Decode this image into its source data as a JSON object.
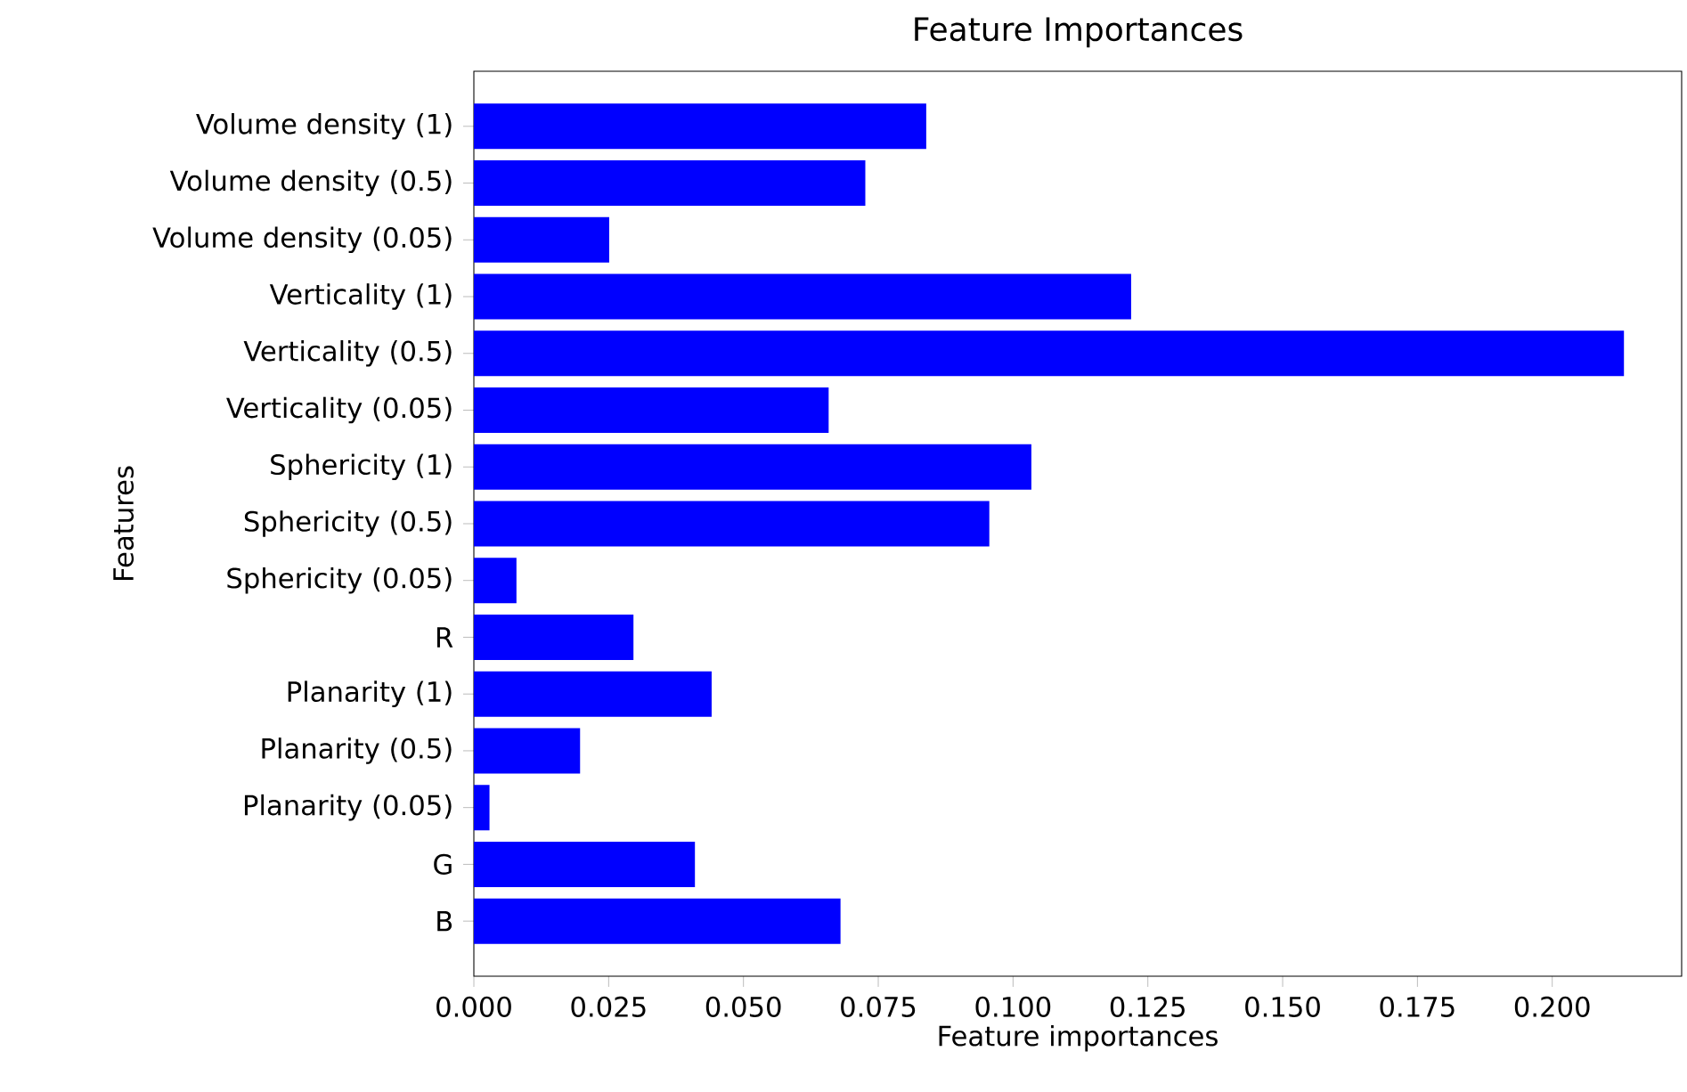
{
  "chart_data": {
    "type": "bar",
    "orientation": "horizontal",
    "title": "Feature Importances",
    "xlabel": "Feature importances",
    "ylabel": "Features",
    "categories": [
      "Volume density (1)",
      "Volume density (0.5)",
      "Volume density (0.05)",
      "Verticality (1)",
      "Verticality (0.5)",
      "Verticality (0.05)",
      "Sphericity (1)",
      "Sphericity (0.5)",
      "Sphericity (0.05)",
      "R",
      "Planarity (1)",
      "Planarity (0.5)",
      "Planarity (0.05)",
      "G",
      "B"
    ],
    "values": [
      0.0839,
      0.0726,
      0.0251,
      0.1219,
      0.2133,
      0.0658,
      0.1034,
      0.0956,
      0.0079,
      0.0296,
      0.0441,
      0.0197,
      0.0029,
      0.041,
      0.068
    ],
    "color": "#0000ff",
    "xlim": [
      0,
      0.224
    ],
    "xticks": [
      {
        "value": 0,
        "label": "0.000"
      },
      {
        "value": 0.025,
        "label": "0.025"
      },
      {
        "value": 0.05,
        "label": "0.050"
      },
      {
        "value": 0.075,
        "label": "0.075"
      },
      {
        "value": 0.1,
        "label": "0.100"
      },
      {
        "value": 0.125,
        "label": "0.125"
      },
      {
        "value": 0.15,
        "label": "0.150"
      },
      {
        "value": 0.175,
        "label": "0.175"
      },
      {
        "value": 0.2,
        "label": "0.200"
      }
    ],
    "grid": false
  }
}
